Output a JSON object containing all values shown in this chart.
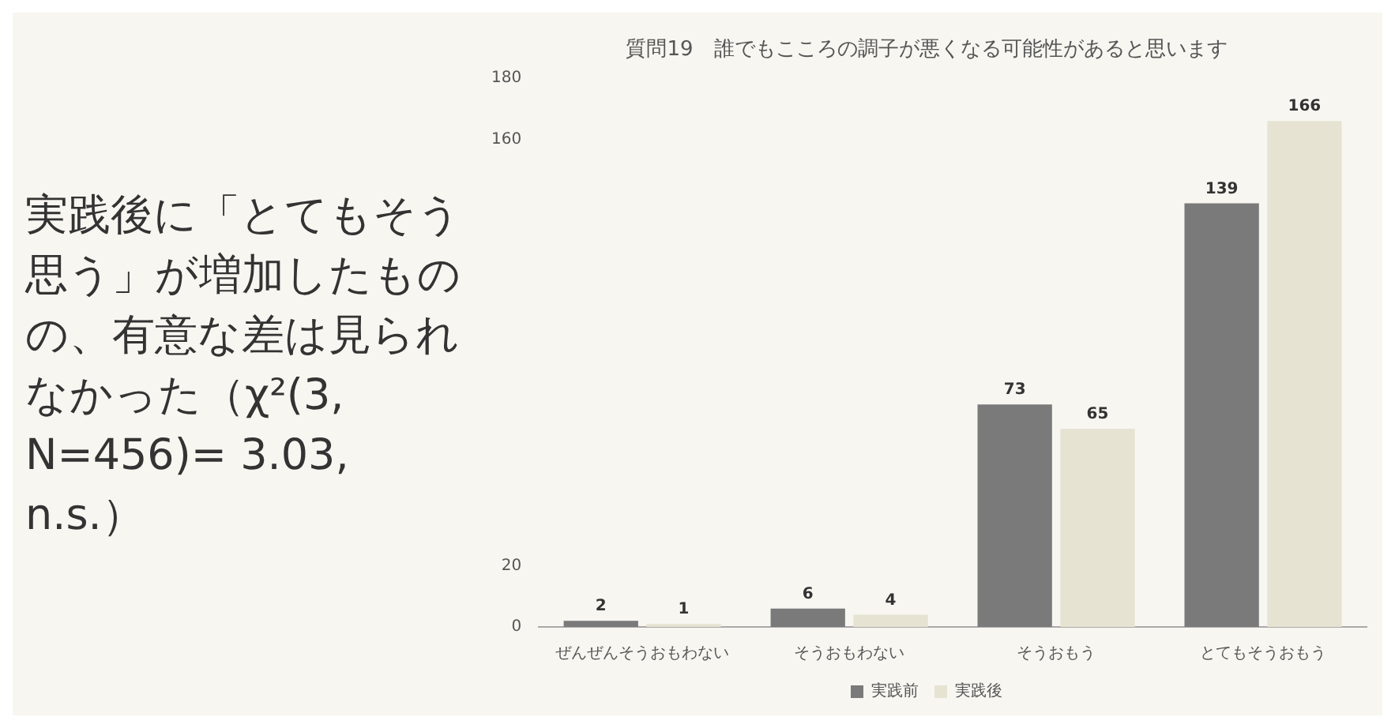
{
  "chart_data": {
    "type": "bar",
    "title": "質問19　誰でもこころの調子が悪くなる可能性があると思います",
    "categories": [
      "ぜんぜんそうおもわない",
      "そうおもわない",
      "そうおもう",
      "とてもそうおもう"
    ],
    "series": [
      {
        "name": "実践前",
        "color": "#7a7a7a",
        "values": [
          2,
          6,
          73,
          139
        ]
      },
      {
        "name": "実践後",
        "color": "#e6e3d2",
        "values": [
          1,
          4,
          65,
          166
        ]
      }
    ],
    "ylim": [
      0,
      180
    ],
    "yticks": [
      0,
      20,
      160,
      180
    ],
    "grid": false,
    "legend": "bottom",
    "data_labels": true,
    "annotations": [
      "実践後に「とてもそう思う」が増加したものの、有意な差は見られなかった（χ²(3, N=456)= 3.03, n.s.）"
    ]
  }
}
